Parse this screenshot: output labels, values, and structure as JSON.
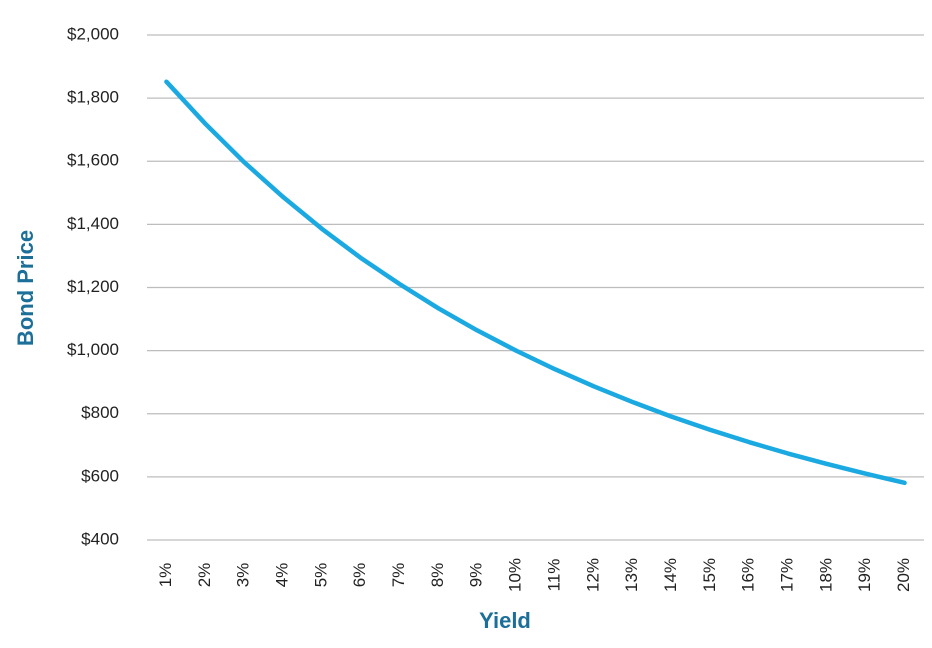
{
  "chart_data": {
    "type": "line",
    "x_label": "Yield",
    "y_label": "Bond Price",
    "categories": [
      "1%",
      "2%",
      "3%",
      "4%",
      "5%",
      "6%",
      "7%",
      "8%",
      "9%",
      "10%",
      "11%",
      "12%",
      "13%",
      "14%",
      "15%",
      "16%",
      "17%",
      "18%",
      "19%",
      "20%"
    ],
    "series": [
      {
        "color": "#1ba9e1",
        "values": [
          1852,
          1719,
          1597,
          1487,
          1386,
          1294,
          1211,
          1134,
          1064,
          1000,
          941,
          887,
          837,
          791,
          749,
          710,
          674,
          641,
          610,
          581
        ]
      }
    ],
    "ylim": [
      400,
      2000
    ],
    "yticks": [
      {
        "value": 400,
        "label": "$400"
      },
      {
        "value": 600,
        "label": "$600"
      },
      {
        "value": 800,
        "label": "$800"
      },
      {
        "value": 1000,
        "label": "$1,000"
      },
      {
        "value": 1200,
        "label": "$1,200"
      },
      {
        "value": 1400,
        "label": "$1,400"
      },
      {
        "value": 1600,
        "label": "$1,600"
      },
      {
        "value": 1800,
        "label": "$1,800"
      },
      {
        "value": 2000,
        "label": "$2,000"
      }
    ],
    "grid": true
  }
}
